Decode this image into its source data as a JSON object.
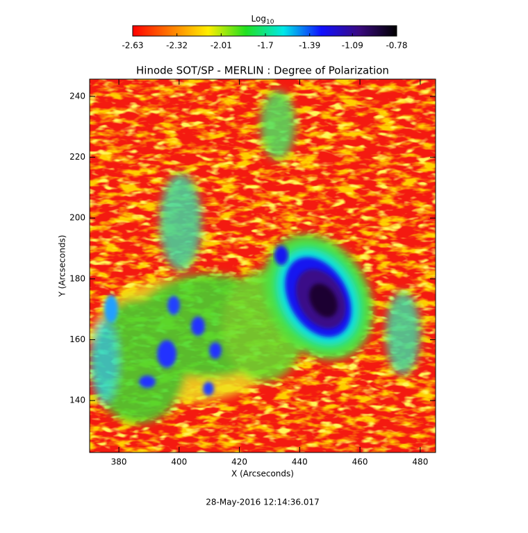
{
  "chart_data": {
    "type": "heatmap",
    "title": "Hinode SOT/SP - MERLIN : Degree of Polarization",
    "xlabel": "X (Arcseconds)",
    "ylabel": "Y (Arcseconds)",
    "footer": "28-May-2016 12:14:36.017",
    "colorbar_label": "Log",
    "colorbar_label_sub": "10",
    "colormap": [
      "#ff0000",
      "#ff7a00",
      "#ffee00",
      "#20e020",
      "#00e8e8",
      "#1010ff",
      "#3a0a80",
      "#000000"
    ],
    "clim": [
      -2.63,
      -0.78
    ],
    "cticks": [
      -2.63,
      -2.32,
      -2.01,
      -1.7,
      -1.39,
      -1.09,
      -0.78
    ],
    "xlim": [
      370.3,
      485.1
    ],
    "xticks": [
      380,
      400,
      420,
      440,
      460,
      480
    ],
    "ylim": [
      122.9,
      245.7
    ],
    "yticks": [
      140,
      160,
      180,
      200,
      220,
      240
    ]
  }
}
